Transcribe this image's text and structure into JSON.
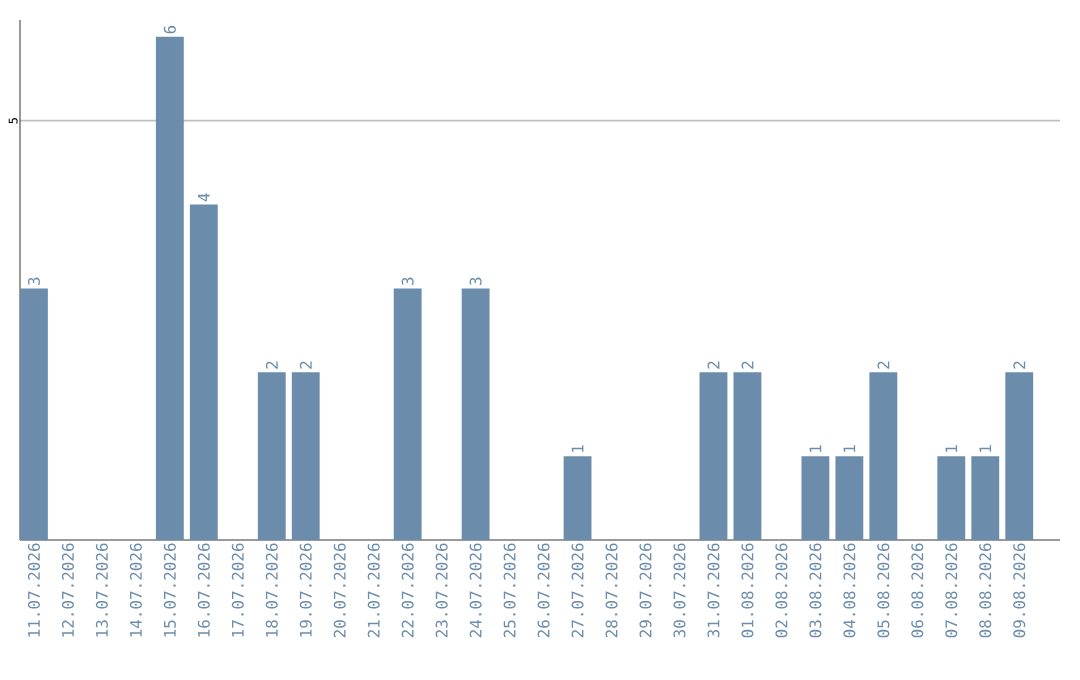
{
  "chart_data": {
    "type": "bar",
    "categories": [
      "11.07.2026",
      "12.07.2026",
      "13.07.2026",
      "14.07.2026",
      "15.07.2026",
      "16.07.2026",
      "17.07.2026",
      "18.07.2026",
      "19.07.2026",
      "20.07.2026",
      "21.07.2026",
      "22.07.2026",
      "23.07.2026",
      "24.07.2026",
      "25.07.2026",
      "26.07.2026",
      "27.07.2026",
      "28.07.2026",
      "29.07.2026",
      "30.07.2026",
      "31.07.2026",
      "01.08.2026",
      "02.08.2026",
      "03.08.2026",
      "04.08.2026",
      "05.08.2026",
      "06.08.2026",
      "07.08.2026",
      "08.08.2026",
      "09.08.2026"
    ],
    "values": [
      3,
      0,
      0,
      0,
      6,
      4,
      0,
      2,
      2,
      0,
      0,
      3,
      0,
      3,
      0,
      0,
      1,
      0,
      0,
      0,
      2,
      2,
      0,
      1,
      1,
      2,
      0,
      1,
      1,
      2
    ],
    "value_labels": [
      "3",
      null,
      null,
      null,
      "6",
      "4",
      null,
      "2",
      "2",
      null,
      null,
      "3",
      null,
      "3",
      null,
      null,
      "1",
      null,
      null,
      null,
      "2",
      "2",
      null,
      "1",
      "1",
      "2",
      null,
      "1",
      "1",
      "2"
    ],
    "color": "#6b8cab",
    "ylim": [
      0,
      6.2
    ],
    "yticks": [
      5
    ],
    "grid": "y"
  }
}
